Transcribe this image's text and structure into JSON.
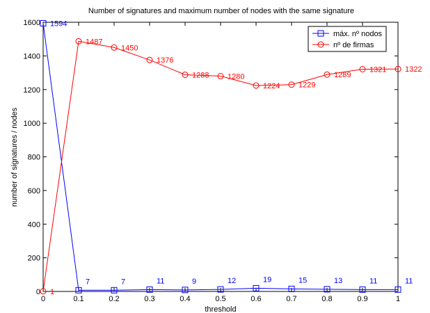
{
  "chart_data": {
    "type": "line",
    "title": "Number of signatures and maximum number of nodes with the same signature",
    "xlabel": "threshold",
    "ylabel": "number of signatures / nodes",
    "x": [
      0,
      0.1,
      0.2,
      0.3,
      0.4,
      0.5,
      0.6,
      0.7,
      0.8,
      0.9,
      1
    ],
    "x_tick_labels": [
      "0",
      "0.1",
      "0.2",
      "0.3",
      "0.4",
      "0.5",
      "0.6",
      "0.7",
      "0.8",
      "0.9",
      "1"
    ],
    "y_ticks": [
      0,
      200,
      400,
      600,
      800,
      1000,
      1200,
      1400,
      1600
    ],
    "xlim": [
      0,
      1
    ],
    "ylim": [
      0,
      1600
    ],
    "grid": false,
    "legend_position": "top-right",
    "series": [
      {
        "name": "máx. nº nodos",
        "color": "#0000ff",
        "marker": "square",
        "values": [
          1594,
          7,
          7,
          11,
          9,
          12,
          19,
          15,
          13,
          11,
          11
        ],
        "labels": [
          "1594",
          "7",
          "7",
          "11",
          "9",
          "12",
          "19",
          "15",
          "13",
          "11",
          "11"
        ]
      },
      {
        "name": "nº de firmas",
        "color": "#ff0000",
        "marker": "circle",
        "values": [
          1,
          1487,
          1450,
          1376,
          1288,
          1280,
          1224,
          1229,
          1289,
          1321,
          1322
        ],
        "labels": [
          "1",
          "1487",
          "1450",
          "1376",
          "1288",
          "1280",
          "1224",
          "1229",
          "1289",
          "1321",
          "1322"
        ]
      }
    ]
  }
}
